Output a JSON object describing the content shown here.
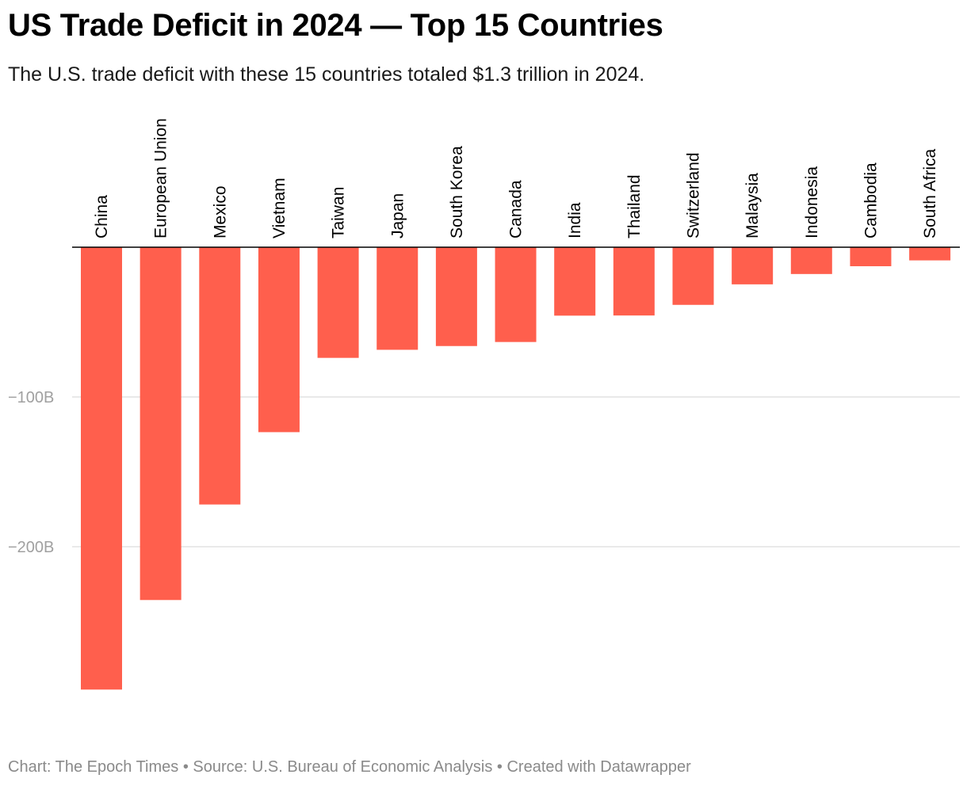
{
  "title": "US Trade Deficit in 2024 — Top 15 Countries",
  "subtitle": "The U.S. trade deficit with these 15 countries totaled $1.3 trillion in 2024.",
  "footer": "Chart: The Epoch Times • Source: U.S. Bureau of Economic Analysis • Created with Datawrapper",
  "colors": {
    "bar": "#ff5f4d",
    "grid": "#e2e2e2",
    "baseline": "#000000"
  },
  "chart_data": {
    "type": "bar",
    "categories": [
      "China",
      "European Union",
      "Mexico",
      "Vietnam",
      "Taiwan",
      "Japan",
      "South Korea",
      "Canada",
      "India",
      "Thailand",
      "Switzerland",
      "Malaysia",
      "Indonesia",
      "Cambodia",
      "South Africa"
    ],
    "values": [
      -295.4,
      -235.6,
      -171.8,
      -123.5,
      -73.9,
      -68.5,
      -66.0,
      -63.3,
      -45.7,
      -45.6,
      -38.5,
      -24.8,
      -17.9,
      -12.7,
      -8.8
    ],
    "xlabel": "",
    "ylabel": "",
    "ylim": [
      -300,
      0
    ],
    "yticks": [
      -100,
      -200
    ],
    "ytick_labels": [
      "−100B",
      "−200B"
    ],
    "grid": true,
    "legend": "none"
  }
}
